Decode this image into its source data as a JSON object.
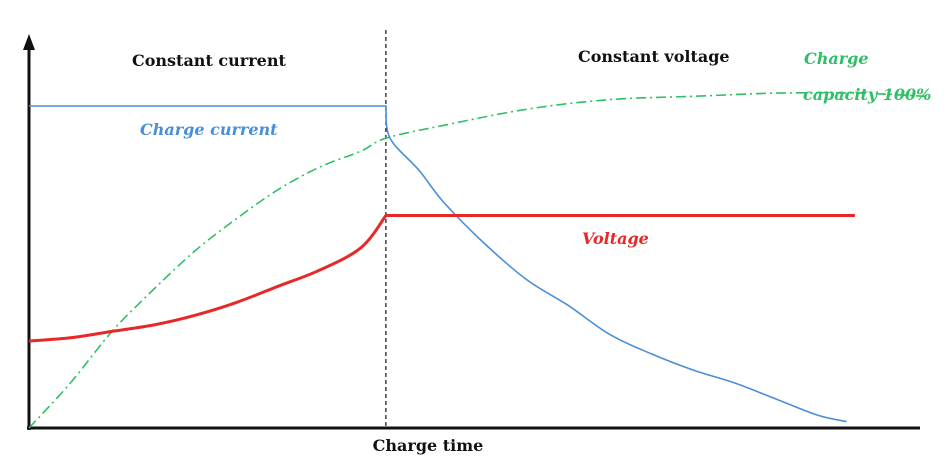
{
  "chart_data": {
    "type": "line",
    "xlabel": "Charge time",
    "ylabel": "",
    "title": "",
    "phases": [
      {
        "name": "Constant current",
        "x_range": [
          0,
          0.43
        ]
      },
      {
        "name": "Constant voltage",
        "x_range": [
          0.43,
          1.0
        ]
      }
    ],
    "phase_boundary_x": 0.43,
    "xlim": [
      0,
      1.1
    ],
    "ylim": [
      0,
      1.08
    ],
    "grid": false,
    "series": [
      {
        "name": "Charge current",
        "color": "#4a8fd6",
        "points": [
          [
            0,
            1.0
          ],
          [
            0.43,
            1.0
          ],
          [
            0.435,
            0.9
          ],
          [
            0.47,
            0.8
          ],
          [
            0.5,
            0.7
          ],
          [
            0.55,
            0.57
          ],
          [
            0.6,
            0.46
          ],
          [
            0.65,
            0.38
          ],
          [
            0.7,
            0.29
          ],
          [
            0.75,
            0.23
          ],
          [
            0.8,
            0.18
          ],
          [
            0.85,
            0.14
          ],
          [
            0.9,
            0.09
          ],
          [
            0.95,
            0.04
          ],
          [
            0.985,
            0.02
          ]
        ]
      },
      {
        "name": "Voltage",
        "color": "#e82828",
        "points": [
          [
            0,
            0.27
          ],
          [
            0.05,
            0.28
          ],
          [
            0.1,
            0.3
          ],
          [
            0.15,
            0.32
          ],
          [
            0.2,
            0.35
          ],
          [
            0.25,
            0.39
          ],
          [
            0.3,
            0.44
          ],
          [
            0.35,
            0.49
          ],
          [
            0.4,
            0.56
          ],
          [
            0.43,
            0.66
          ],
          [
            0.5,
            0.66
          ],
          [
            0.6,
            0.66
          ],
          [
            0.7,
            0.66
          ],
          [
            0.8,
            0.66
          ],
          [
            0.9,
            0.66
          ],
          [
            0.995,
            0.66
          ]
        ]
      },
      {
        "name": "Charge capacity 100%",
        "label_lines": [
          "Charge",
          "capacity 100%"
        ],
        "color": "#2fbf66",
        "points": [
          [
            0,
            0.0
          ],
          [
            0.05,
            0.14
          ],
          [
            0.1,
            0.3
          ],
          [
            0.15,
            0.43
          ],
          [
            0.2,
            0.55
          ],
          [
            0.25,
            0.65
          ],
          [
            0.3,
            0.74
          ],
          [
            0.35,
            0.81
          ],
          [
            0.4,
            0.86
          ],
          [
            0.43,
            0.9
          ],
          [
            0.5,
            0.94
          ],
          [
            0.6,
            0.99
          ],
          [
            0.7,
            1.02
          ],
          [
            0.8,
            1.03
          ],
          [
            0.9,
            1.04
          ],
          [
            1.0,
            1.04
          ],
          [
            1.08,
            1.03
          ]
        ]
      }
    ]
  }
}
